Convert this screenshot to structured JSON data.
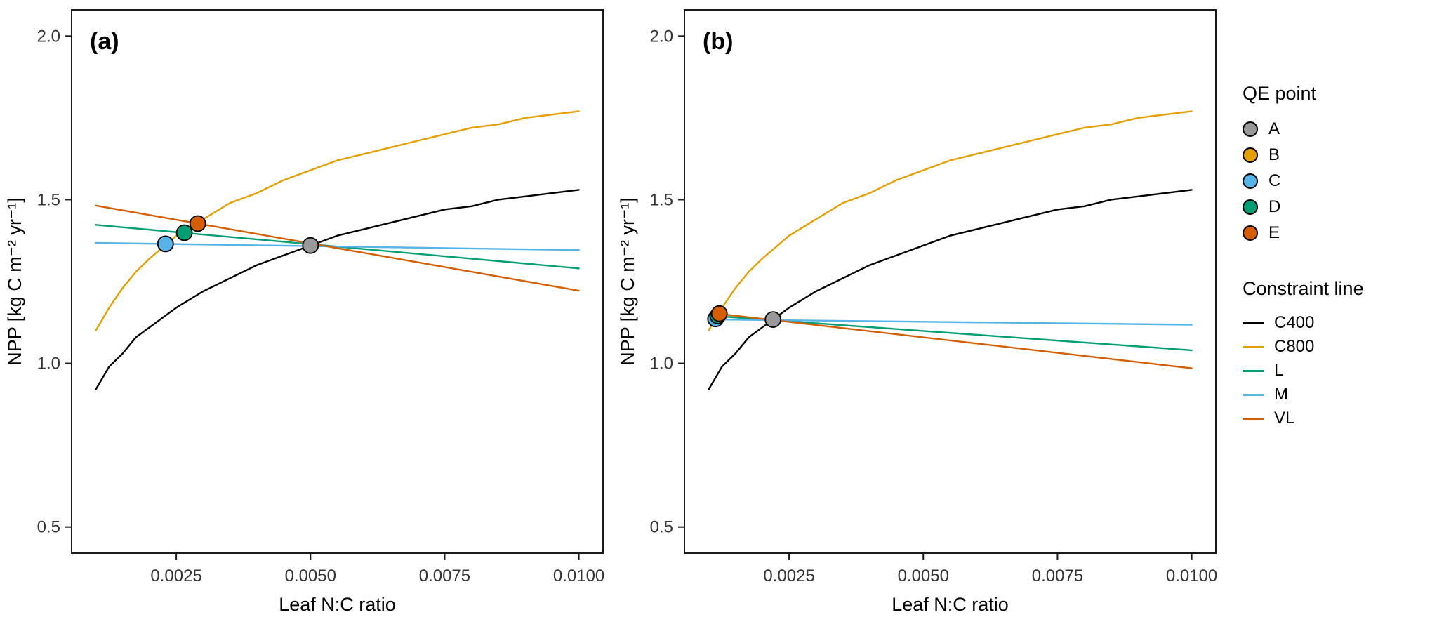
{
  "figure": {
    "background": "#ffffff",
    "panel_border_color": "#1a1a1a"
  },
  "legend": {
    "point_group_title": "QE point",
    "points": [
      {
        "label": "A",
        "color": "#999999"
      },
      {
        "label": "B",
        "color": "#E69F00"
      },
      {
        "label": "C",
        "color": "#56B4E9"
      },
      {
        "label": "D",
        "color": "#009E73"
      },
      {
        "label": "E",
        "color": "#D55E00"
      }
    ],
    "line_group_title": "Constraint line",
    "lines": [
      {
        "label": "C400",
        "color": "#000000"
      },
      {
        "label": "C800",
        "color": "#E69F00"
      },
      {
        "label": "L",
        "color": "#009E73"
      },
      {
        "label": "M",
        "color": "#56B4E9"
      },
      {
        "label": "VL",
        "color": "#D55E00"
      }
    ]
  },
  "chart_data": [
    {
      "type": "line",
      "panel_label": "(a)",
      "xlabel": "Leaf N:C ratio",
      "ylabel": "NPP [kg C m⁻² yr⁻¹]",
      "xlim": [
        0.00055,
        0.01045
      ],
      "ylim": [
        0.42,
        2.08
      ],
      "grid": false,
      "legend_position": "right-shared",
      "xticks": {
        "values": [
          0.0025,
          0.005,
          0.0075,
          0.01
        ],
        "labels": [
          "0.0025",
          "0.0050",
          "0.0075",
          "0.0100"
        ]
      },
      "yticks": {
        "values": [
          0.5,
          1.0,
          1.5,
          2.0
        ],
        "labels": [
          "0.5",
          "1.0",
          "1.5",
          "2.0"
        ]
      },
      "series": [
        {
          "name": "C400",
          "color": "#000000",
          "x": [
            0.001,
            0.00125,
            0.0015,
            0.00175,
            0.002,
            0.0025,
            0.003,
            0.0035,
            0.004,
            0.0045,
            0.005,
            0.0055,
            0.006,
            0.0065,
            0.007,
            0.0075,
            0.008,
            0.0085,
            0.009,
            0.0095,
            0.01
          ],
          "y": [
            0.92,
            0.99,
            1.03,
            1.08,
            1.11,
            1.17,
            1.22,
            1.26,
            1.3,
            1.33,
            1.36,
            1.39,
            1.41,
            1.43,
            1.45,
            1.47,
            1.48,
            1.5,
            1.51,
            1.52,
            1.53
          ]
        },
        {
          "name": "C800",
          "color": "#E69F00",
          "x": [
            0.001,
            0.00125,
            0.0015,
            0.00175,
            0.002,
            0.0025,
            0.003,
            0.0035,
            0.004,
            0.0045,
            0.005,
            0.0055,
            0.006,
            0.0065,
            0.007,
            0.0075,
            0.008,
            0.0085,
            0.009,
            0.0095,
            0.01
          ],
          "y": [
            1.1,
            1.17,
            1.23,
            1.28,
            1.32,
            1.39,
            1.44,
            1.49,
            1.52,
            1.56,
            1.59,
            1.62,
            1.64,
            1.66,
            1.68,
            1.7,
            1.72,
            1.73,
            1.75,
            1.76,
            1.77
          ]
        },
        {
          "name": "L",
          "color": "#009E73",
          "x": [
            0.001,
            0.01
          ],
          "y": [
            1.423,
            1.29
          ]
        },
        {
          "name": "M",
          "color": "#56B4E9",
          "x": [
            0.001,
            0.01
          ],
          "y": [
            1.368,
            1.346
          ]
        },
        {
          "name": "VL",
          "color": "#D55E00",
          "x": [
            0.001,
            0.01
          ],
          "y": [
            1.482,
            1.222
          ]
        }
      ],
      "points": [
        {
          "name": "A",
          "color": "#999999",
          "x": 0.005,
          "y": 1.36
        },
        {
          "name": "C",
          "color": "#56B4E9",
          "x": 0.0023,
          "y": 1.365
        },
        {
          "name": "D",
          "color": "#009E73",
          "x": 0.00265,
          "y": 1.399
        },
        {
          "name": "E",
          "color": "#D55E00",
          "x": 0.0029,
          "y": 1.427
        }
      ]
    },
    {
      "type": "line",
      "panel_label": "(b)",
      "xlabel": "Leaf N:C ratio",
      "ylabel": "NPP [kg C m⁻² yr⁻¹]",
      "xlim": [
        0.00055,
        0.01045
      ],
      "ylim": [
        0.42,
        2.08
      ],
      "grid": false,
      "legend_position": "right-shared",
      "xticks": {
        "values": [
          0.0025,
          0.005,
          0.0075,
          0.01
        ],
        "labels": [
          "0.0025",
          "0.0050",
          "0.0075",
          "0.0100"
        ]
      },
      "yticks": {
        "values": [
          0.5,
          1.0,
          1.5,
          2.0
        ],
        "labels": [
          "0.5",
          "1.0",
          "1.5",
          "2.0"
        ]
      },
      "series": [
        {
          "name": "C400",
          "color": "#000000",
          "x": [
            0.001,
            0.00125,
            0.0015,
            0.00175,
            0.002,
            0.0025,
            0.003,
            0.0035,
            0.004,
            0.0045,
            0.005,
            0.0055,
            0.006,
            0.0065,
            0.007,
            0.0075,
            0.008,
            0.0085,
            0.009,
            0.0095,
            0.01
          ],
          "y": [
            0.92,
            0.99,
            1.03,
            1.08,
            1.11,
            1.17,
            1.22,
            1.26,
            1.3,
            1.33,
            1.36,
            1.39,
            1.41,
            1.43,
            1.45,
            1.47,
            1.48,
            1.5,
            1.51,
            1.52,
            1.53
          ]
        },
        {
          "name": "C800",
          "color": "#E69F00",
          "x": [
            0.001,
            0.00125,
            0.0015,
            0.00175,
            0.002,
            0.0025,
            0.003,
            0.0035,
            0.004,
            0.0045,
            0.005,
            0.0055,
            0.006,
            0.0065,
            0.007,
            0.0075,
            0.008,
            0.0085,
            0.009,
            0.0095,
            0.01
          ],
          "y": [
            1.1,
            1.17,
            1.23,
            1.28,
            1.32,
            1.39,
            1.44,
            1.49,
            1.52,
            1.56,
            1.59,
            1.62,
            1.64,
            1.66,
            1.68,
            1.7,
            1.72,
            1.73,
            1.75,
            1.76,
            1.77
          ]
        },
        {
          "name": "L",
          "color": "#009E73",
          "x": [
            0.0011,
            0.01
          ],
          "y": [
            1.145,
            1.04
          ]
        },
        {
          "name": "M",
          "color": "#56B4E9",
          "x": [
            0.0011,
            0.01
          ],
          "y": [
            1.134,
            1.118
          ]
        },
        {
          "name": "VL",
          "color": "#D55E00",
          "x": [
            0.0011,
            0.01
          ],
          "y": [
            1.153,
            0.985
          ]
        }
      ],
      "points": [
        {
          "name": "A",
          "color": "#999999",
          "x": 0.0022,
          "y": 1.134
        },
        {
          "name": "C",
          "color": "#56B4E9",
          "x": 0.00113,
          "y": 1.136
        },
        {
          "name": "D",
          "color": "#009E73",
          "x": 0.00117,
          "y": 1.145
        },
        {
          "name": "E",
          "color": "#D55E00",
          "x": 0.0012,
          "y": 1.152
        }
      ]
    }
  ]
}
